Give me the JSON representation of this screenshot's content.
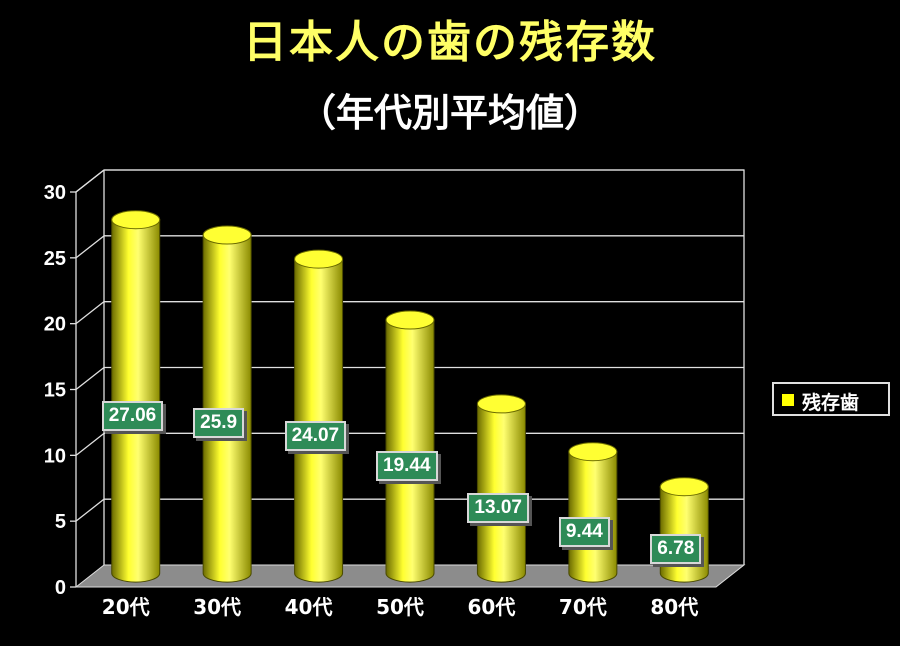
{
  "title": "日本人の歯の残存数",
  "subtitle": "（年代別平均値）",
  "chart_data": {
    "type": "bar",
    "categories": [
      "20代",
      "30代",
      "40代",
      "50代",
      "60代",
      "70代",
      "80代"
    ],
    "series": [
      {
        "name": "残存歯",
        "values": [
          27.06,
          25.9,
          24.07,
          19.44,
          13.07,
          9.44,
          6.78
        ]
      }
    ],
    "data_labels": [
      "27.06",
      "25.9",
      "24.07",
      "19.44",
      "13.07",
      "9.44",
      "6.78"
    ],
    "y_ticks": [
      "0",
      "5",
      "10",
      "15",
      "20",
      "25",
      "30"
    ],
    "ylim": [
      0,
      30
    ],
    "grid": true,
    "legend_position": "right",
    "bar_color": "#ffff00",
    "label_bg_color": "#2e8b57"
  }
}
